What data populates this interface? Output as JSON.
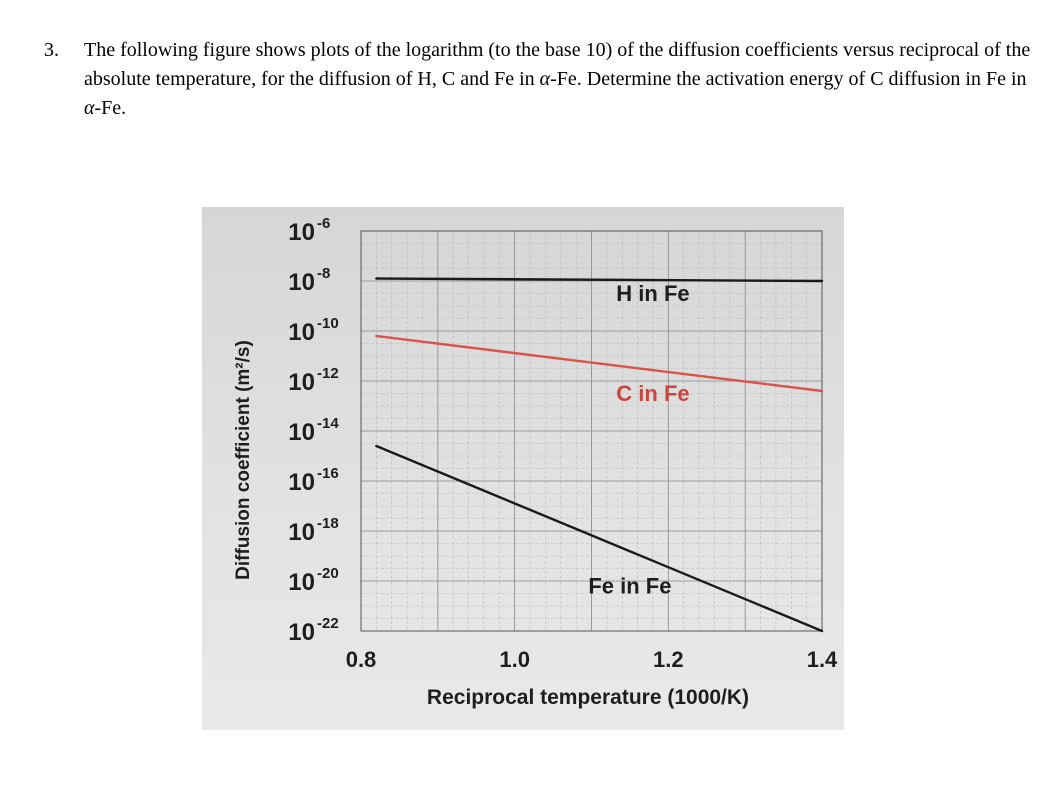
{
  "question": {
    "number": "3.",
    "text_before_alpha_1": "The following figure shows plots of the logarithm (to the base 10) of the diffusion coefficients versus reciprocal of the absolute temperature, for the diffusion of H, C and Fe in ",
    "alpha_1": "α",
    "text_between_alpha": "-Fe. Determine the activation energy of C diffusion in Fe in ",
    "alpha_2": "α",
    "text_after_alpha_2": "-Fe."
  },
  "colors": {
    "h_line": "#1a1a1a",
    "c_line": "#d9534a",
    "fe_line": "#1a1a1a",
    "c_label": "#c9463e",
    "grid": "#a9a9a9",
    "photo_bg": "#dcdcdc"
  },
  "chart_data": {
    "type": "line",
    "ylabel": "Diffusion coefficient (m²/s)",
    "xlabel": "Reciprocal temperature (1000/K)",
    "xlim": [
      0.8,
      1.4
    ],
    "ylim": [
      -22,
      -6
    ],
    "y_scale": "log",
    "x_ticks": [
      "0.8",
      "1.0",
      "1.2",
      "1.4"
    ],
    "y_ticks": [
      {
        "base": "10",
        "exp": "-6"
      },
      {
        "base": "10",
        "exp": "-8"
      },
      {
        "base": "10",
        "exp": "-10"
      },
      {
        "base": "10",
        "exp": "-12"
      },
      {
        "base": "10",
        "exp": "-14"
      },
      {
        "base": "10",
        "exp": "-16"
      },
      {
        "base": "10",
        "exp": "-18"
      },
      {
        "base": "10",
        "exp": "-20"
      },
      {
        "base": "10",
        "exp": "-22"
      }
    ],
    "grid": true,
    "series": [
      {
        "name": "H in Fe",
        "x": [
          0.82,
          1.4
        ],
        "log10_D": [
          -7.9,
          -8.0
        ]
      },
      {
        "name": "C in Fe",
        "x": [
          0.82,
          1.4
        ],
        "log10_D": [
          -10.2,
          -12.4
        ]
      },
      {
        "name": "Fe in Fe",
        "x": [
          0.82,
          1.4
        ],
        "log10_D": [
          -14.6,
          -22.0
        ]
      }
    ]
  }
}
